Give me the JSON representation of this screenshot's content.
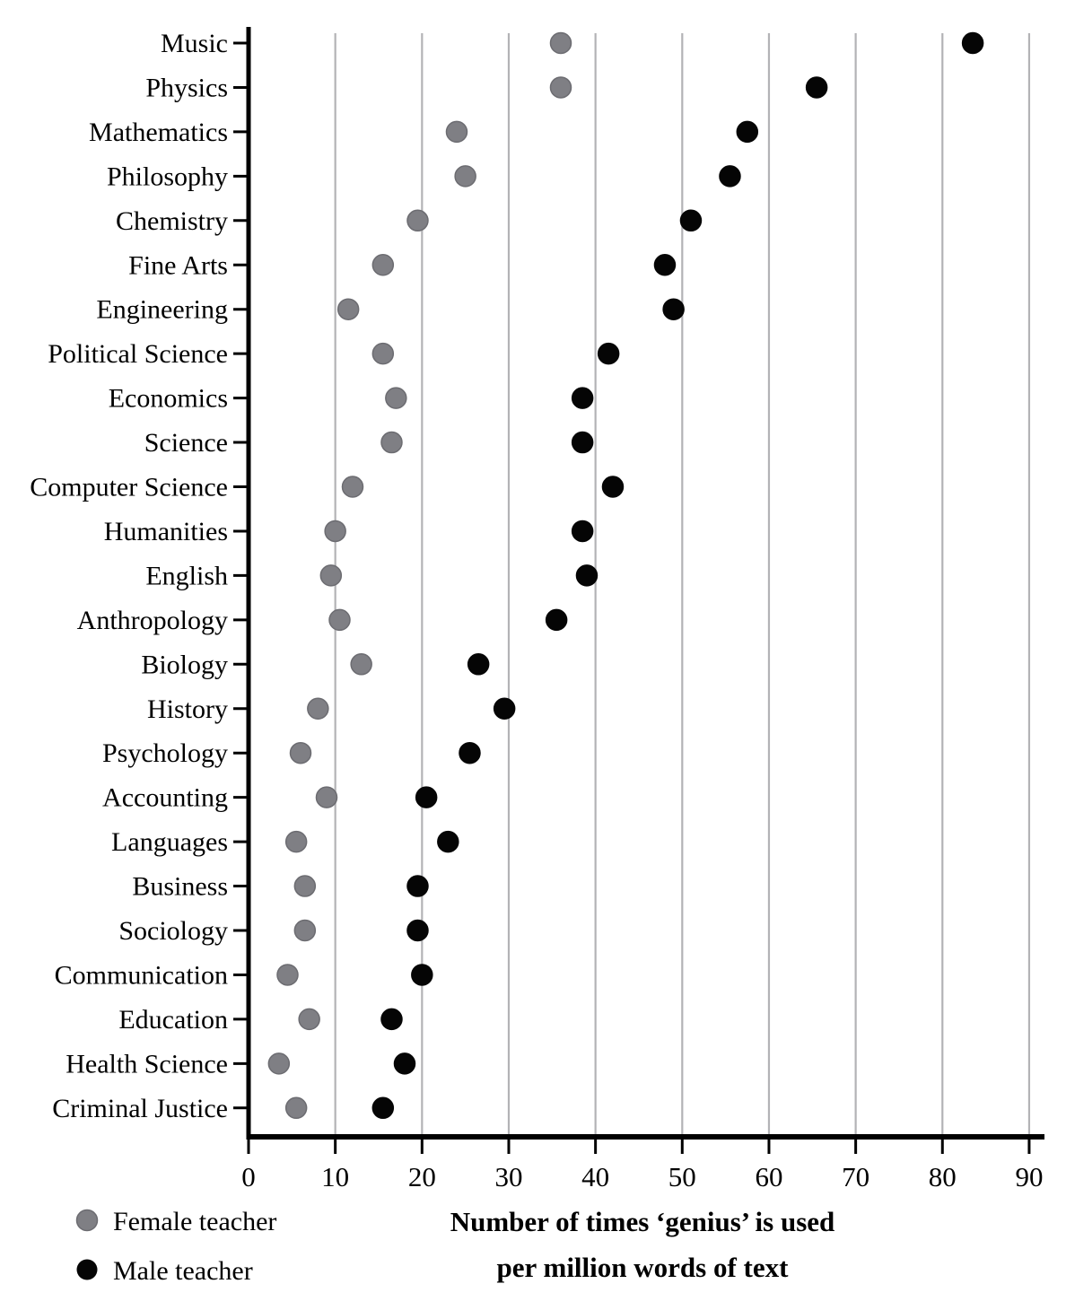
{
  "chart_data": {
    "type": "scatter",
    "variant": "cleveland-dot-plot",
    "title": "",
    "xlabel_line1": "Number of times ‘genius’ is used",
    "xlabel_line2": "per million words of text",
    "ylabel": "",
    "xlim": [
      0,
      92
    ],
    "x_ticks": [
      0,
      10,
      20,
      30,
      40,
      50,
      60,
      70,
      80,
      90
    ],
    "grid": "vertical gridlines at x = 10..90",
    "legend_position": "bottom-left",
    "categories": [
      "Music",
      "Physics",
      "Mathematics",
      "Philosophy",
      "Chemistry",
      "Fine Arts",
      "Engineering",
      "Political Science",
      "Economics",
      "Science",
      "Computer Science",
      "Humanities",
      "English",
      "Anthropology",
      "Biology",
      "History",
      "Psychology",
      "Accounting",
      "Languages",
      "Business",
      "Sociology",
      "Communication",
      "Education",
      "Health Science",
      "Criminal Justice"
    ],
    "series": [
      {
        "name": "Female teacher",
        "color": "#7f7f84",
        "edge_color": "#6c6c71",
        "values": [
          36,
          36,
          24,
          25,
          19.5,
          15.5,
          11.5,
          15.5,
          17,
          16.5,
          12,
          10,
          9.5,
          10.5,
          13,
          8,
          6,
          9,
          5.5,
          6.5,
          6.5,
          4.5,
          7,
          3.5,
          5.5
        ]
      },
      {
        "name": "Male teacher",
        "color": "#050505",
        "edge_color": "#050505",
        "values": [
          83.5,
          65.5,
          57.5,
          55.5,
          51,
          48,
          49,
          41.5,
          38.5,
          38.5,
          42,
          38.5,
          39,
          35.5,
          26.5,
          29.5,
          25.5,
          20.5,
          23,
          19.5,
          19.5,
          20,
          16.5,
          18,
          15.5
        ]
      }
    ]
  },
  "colors": {
    "background": "#ffffff",
    "gridline": "#b3b3b6",
    "axis": "#000000",
    "text": "#000000"
  }
}
